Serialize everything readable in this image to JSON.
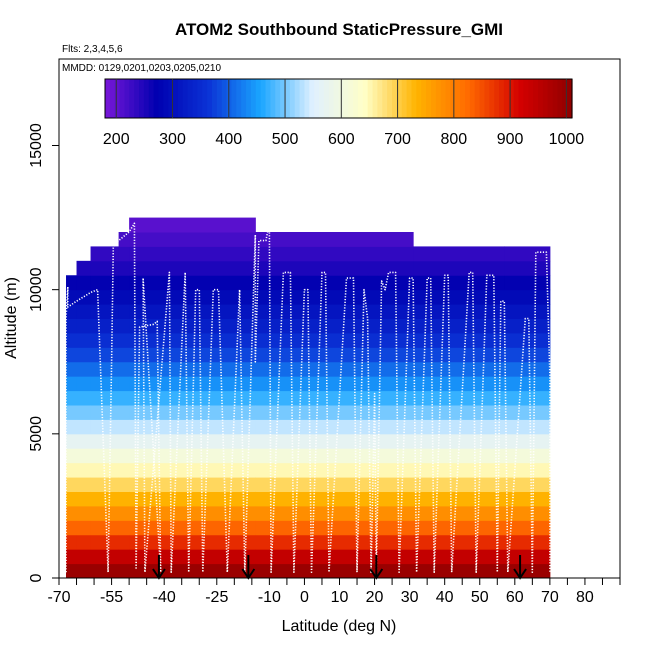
{
  "chart_data": {
    "type": "heatmap",
    "title": "ATOM2 Southbound StaticPressure_GMI",
    "subtitle_flights": "Flts: 2,3,4,5,6",
    "subtitle_dates": "MMDD: 0129,0201,0203,0205,0210",
    "xlabel": "Latitude (deg N)",
    "ylabel": "Altitude (m)",
    "xlim": [
      -70,
      90
    ],
    "ylim": [
      0,
      18000
    ],
    "x_ticks": [
      -70,
      -55,
      -40,
      -25,
      -10,
      0,
      10,
      20,
      30,
      40,
      50,
      60,
      70,
      80
    ],
    "x_minor_ticks": [
      -65,
      -60,
      -50,
      -45,
      -35,
      -30,
      -20,
      -15,
      -5,
      5,
      15,
      25,
      35,
      45,
      55,
      65,
      75,
      85,
      90
    ],
    "y_ticks": [
      0,
      5000,
      10000,
      15000
    ],
    "colorbar": {
      "min": 180,
      "max": 1010,
      "ticks": [
        200,
        300,
        400,
        500,
        600,
        700,
        800,
        900,
        1000
      ],
      "palette": [
        "#7a17d9",
        "#0000b0",
        "#0b33d6",
        "#1aa6ff",
        "#dff0ff",
        "#ffffc8",
        "#ffb300",
        "#ff6a00",
        "#d40000",
        "#8f0000"
      ]
    },
    "altitude_bands": [
      {
        "top": 500,
        "value": 995
      },
      {
        "top": 1000,
        "value": 940
      },
      {
        "top": 1500,
        "value": 880
      },
      {
        "top": 2000,
        "value": 830
      },
      {
        "top": 2500,
        "value": 780
      },
      {
        "top": 3000,
        "value": 735
      },
      {
        "top": 3500,
        "value": 690
      },
      {
        "top": 4000,
        "value": 650
      },
      {
        "top": 4500,
        "value": 610
      },
      {
        "top": 5000,
        "value": 570
      },
      {
        "top": 5500,
        "value": 535
      },
      {
        "top": 6000,
        "value": 500
      },
      {
        "top": 6500,
        "value": 470
      },
      {
        "top": 7000,
        "value": 440
      },
      {
        "top": 7500,
        "value": 410
      },
      {
        "top": 8000,
        "value": 380
      },
      {
        "top": 8500,
        "value": 355
      },
      {
        "top": 9000,
        "value": 330
      },
      {
        "top": 9500,
        "value": 310
      },
      {
        "top": 10000,
        "value": 290
      },
      {
        "top": 10500,
        "value": 270
      },
      {
        "top": 11000,
        "value": 250
      },
      {
        "top": 11500,
        "value": 235
      },
      {
        "top": 12000,
        "value": 220
      },
      {
        "top": 12500,
        "value": 205
      }
    ],
    "ceiling": [
      {
        "x0": -68,
        "x1": -65,
        "top": 10500
      },
      {
        "x0": -65,
        "x1": -61,
        "top": 11000
      },
      {
        "x0": -61,
        "x1": -53,
        "top": 11500
      },
      {
        "x0": -53,
        "x1": -50,
        "top": 12000
      },
      {
        "x0": -50,
        "x1": -14,
        "top": 12500
      },
      {
        "x0": -14,
        "x1": -10,
        "top": 12000
      },
      {
        "x0": -10,
        "x1": 31,
        "top": 12000
      },
      {
        "x0": 31,
        "x1": 57,
        "top": 11500
      },
      {
        "x0": 57,
        "x1": 70,
        "top": 11500
      }
    ],
    "flight_track": [
      [
        -68,
        200
      ],
      [
        -68,
        9000
      ],
      [
        -67.5,
        10100
      ],
      [
        -67.5,
        9400
      ],
      [
        -65,
        9600
      ],
      [
        -61,
        9900
      ],
      [
        -59,
        10000
      ],
      [
        -56,
        200
      ],
      [
        -55,
        7500
      ],
      [
        -54.5,
        11500
      ],
      [
        -53,
        11700
      ],
      [
        -50,
        12000
      ],
      [
        -48.5,
        12300
      ],
      [
        -48,
        300
      ],
      [
        -47,
        8700
      ],
      [
        -43,
        8800
      ],
      [
        -42,
        8900
      ],
      [
        -41,
        200
      ],
      [
        -46,
        10400
      ],
      [
        -45.5,
        200
      ],
      [
        -38.5,
        10600
      ],
      [
        -38,
        200
      ],
      [
        -34,
        10600
      ],
      [
        -33,
        200
      ],
      [
        -31,
        10000
      ],
      [
        -30,
        10000
      ],
      [
        -29,
        200
      ],
      [
        -26,
        10000
      ],
      [
        -24.5,
        10000
      ],
      [
        -22,
        200
      ],
      [
        -18.5,
        10000
      ],
      [
        -17,
        200
      ],
      [
        -14,
        11900
      ],
      [
        -14,
        7500
      ],
      [
        -13,
        11700
      ],
      [
        -11,
        11700
      ],
      [
        -10.5,
        12000
      ],
      [
        -10,
        12000
      ],
      [
        -9.5,
        200
      ],
      [
        -6,
        10600
      ],
      [
        -4,
        10600
      ],
      [
        -3,
        200
      ],
      [
        0,
        10000
      ],
      [
        1,
        10000
      ],
      [
        2,
        200
      ],
      [
        5,
        10600
      ],
      [
        6,
        10600
      ],
      [
        7,
        200
      ],
      [
        12,
        10400
      ],
      [
        14,
        10400
      ],
      [
        15,
        200
      ],
      [
        17,
        10000
      ],
      [
        18,
        9000
      ],
      [
        19,
        200
      ],
      [
        20,
        6400
      ],
      [
        20.5,
        200
      ],
      [
        22,
        10300
      ],
      [
        23,
        10000
      ],
      [
        24,
        10600
      ],
      [
        26,
        10600
      ],
      [
        27,
        200
      ],
      [
        30,
        10400
      ],
      [
        31,
        10400
      ],
      [
        32,
        200
      ],
      [
        35,
        10400
      ],
      [
        36,
        10400
      ],
      [
        37,
        200
      ],
      [
        40,
        10500
      ],
      [
        41,
        10500
      ],
      [
        42,
        200
      ],
      [
        47,
        10600
      ],
      [
        48,
        10600
      ],
      [
        49,
        200
      ],
      [
        52,
        10500
      ],
      [
        54,
        10500
      ],
      [
        55,
        200
      ],
      [
        56,
        9600
      ],
      [
        57,
        9600
      ],
      [
        58,
        200
      ],
      [
        63,
        9000
      ],
      [
        64,
        9000
      ],
      [
        65,
        200
      ],
      [
        66,
        11300
      ],
      [
        69,
        11300
      ],
      [
        70,
        7000
      ],
      [
        70,
        200
      ]
    ],
    "arrows": [
      -41.5,
      -16,
      20.5,
      61.5
    ]
  }
}
